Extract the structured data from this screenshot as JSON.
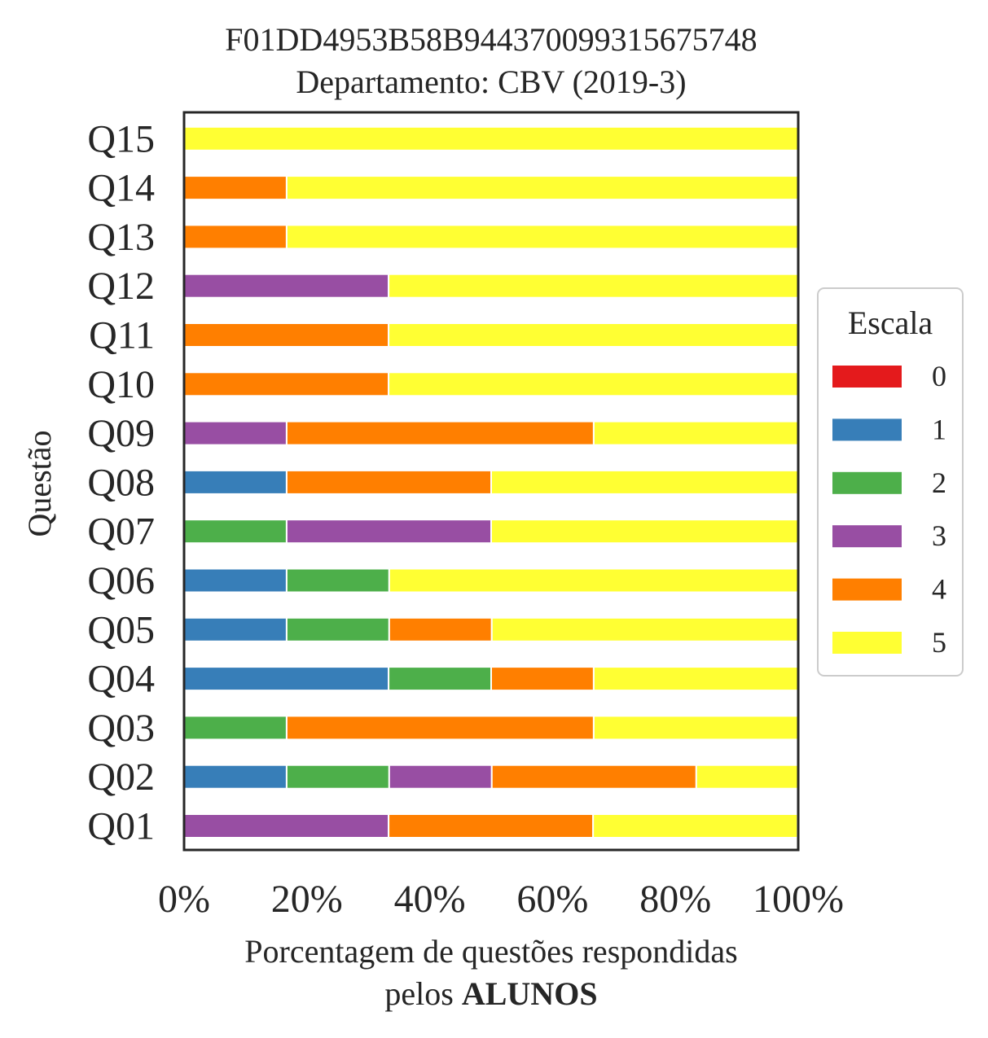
{
  "chart_data": {
    "type": "bar",
    "orientation": "horizontal",
    "stacked": true,
    "title": "F01DD4953B58B944370099315675748",
    "subtitle": "Departamento: CBV (2019-3)",
    "xlabel_line1": "Porcentagem de questões respondidas",
    "xlabel_line2_prefix": "pelos ",
    "xlabel_line2_bold": "ALUNOS",
    "ylabel": "Questão",
    "xlim": [
      0,
      100
    ],
    "x_ticks": [
      0,
      20,
      40,
      60,
      80,
      100
    ],
    "x_tick_labels": [
      "0%",
      "20%",
      "40%",
      "60%",
      "80%",
      "100%"
    ],
    "grid": false,
    "legend_title": "Escala",
    "legend_position": "right",
    "categories": [
      "Q01",
      "Q02",
      "Q03",
      "Q04",
      "Q05",
      "Q06",
      "Q07",
      "Q08",
      "Q09",
      "Q10",
      "Q11",
      "Q12",
      "Q13",
      "Q14",
      "Q15"
    ],
    "series": [
      {
        "name": "0",
        "color": "#e41a1c",
        "values": [
          0,
          0,
          0,
          0,
          0,
          0,
          0,
          0,
          0,
          0,
          0,
          0,
          0,
          0,
          0
        ]
      },
      {
        "name": "1",
        "color": "#377eb8",
        "values": [
          0,
          16.7,
          0,
          33.3,
          16.7,
          16.7,
          0,
          16.7,
          0,
          0,
          0,
          0,
          0,
          0,
          0
        ]
      },
      {
        "name": "2",
        "color": "#4daf4a",
        "values": [
          0,
          16.7,
          16.7,
          16.7,
          16.7,
          16.7,
          16.7,
          0,
          0,
          0,
          0,
          0,
          0,
          0,
          0
        ]
      },
      {
        "name": "3",
        "color": "#984ea3",
        "values": [
          33.3,
          16.7,
          0,
          0,
          0,
          0,
          33.3,
          0,
          16.7,
          0,
          0,
          33.3,
          0,
          0,
          0
        ]
      },
      {
        "name": "4",
        "color": "#ff7f00",
        "values": [
          33.3,
          33.3,
          50,
          16.7,
          16.7,
          0,
          0,
          33.3,
          50,
          33.3,
          33.3,
          0,
          16.7,
          16.7,
          0
        ]
      },
      {
        "name": "5",
        "color": "#ffff33",
        "values": [
          33.3,
          16.7,
          33.3,
          33.3,
          50,
          66.7,
          50,
          50,
          33.3,
          66.7,
          66.7,
          66.7,
          83.3,
          83.3,
          100
        ]
      }
    ]
  }
}
